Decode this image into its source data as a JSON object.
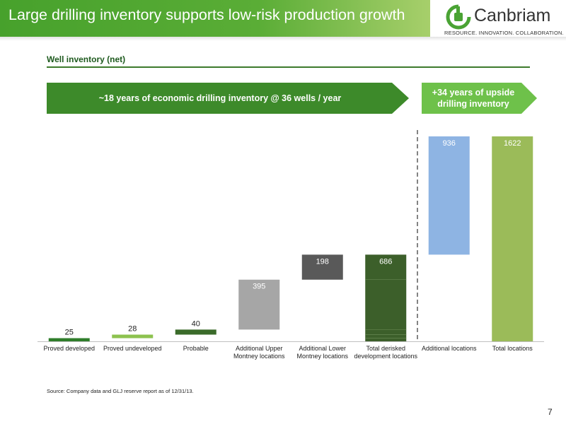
{
  "header": {
    "title": "Large drilling inventory supports low-risk production growth",
    "logo_text": "Canbriam",
    "logo_tagline": "RESOURCE. INNOVATION. COLLABORATION."
  },
  "section_title": "Well inventory (net)",
  "banners": {
    "main": "~18 years of economic drilling inventory @ 36 wells / year",
    "upside": "+34 years of upside drilling inventory"
  },
  "chart_data": {
    "type": "bar",
    "subtype": "waterfall",
    "categories": [
      [
        "Proved developed"
      ],
      [
        "Proved undeveloped"
      ],
      [
        "Probable"
      ],
      [
        "Additional Upper",
        "Montney locations"
      ],
      [
        "Additional Lower",
        "Montney locations"
      ],
      [
        "Total derisked",
        "development locations"
      ],
      [
        "Additional locations"
      ],
      [
        "Total locations"
      ]
    ],
    "values": [
      25,
      28,
      40,
      395,
      198,
      686,
      936,
      1622
    ],
    "value_labels": [
      "25",
      "28",
      "40",
      "395",
      "198",
      "686",
      "936",
      "1622"
    ],
    "kind": [
      "step",
      "step",
      "step",
      "step",
      "step",
      "total",
      "step",
      "total"
    ],
    "total_segments": [
      25,
      28,
      40,
      395,
      198
    ],
    "colors": [
      "#2f7d2a",
      "#8dc24f",
      "#3b6b2a",
      "#a6a6a6",
      "#595959",
      "#3c5f2a",
      "#8eb4e3",
      "#9bbb59"
    ],
    "label_colors": [
      "#222222",
      "#222222",
      "#222222",
      "#ffffff",
      "#ffffff",
      "#ffffff",
      "#ffffff",
      "#ffffff"
    ],
    "label_inside": [
      false,
      false,
      false,
      true,
      true,
      true,
      true,
      true
    ],
    "divider_after_index": 5,
    "ylim": [
      0,
      1622
    ],
    "grid": false,
    "legend": "none"
  },
  "source_note": "Source: Company data and GLJ reserve report as of 12/31/13.",
  "page_number": "7"
}
